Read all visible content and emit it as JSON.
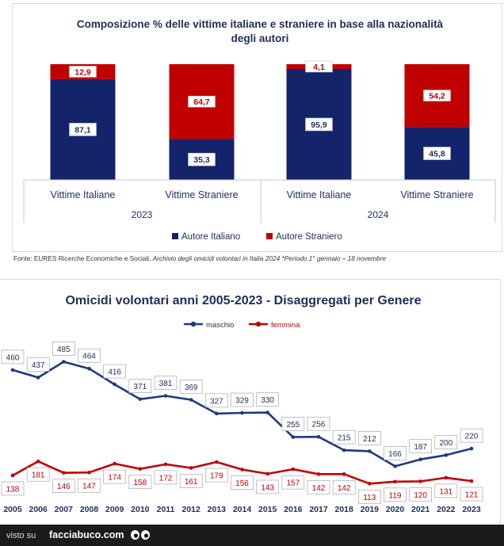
{
  "chart_data": [
    {
      "type": "bar",
      "stacked": true,
      "percent": true,
      "title": "Composizione % delle vittime italiane e straniere in base alla nazionalità degli autori",
      "categories": [
        "Vittime Italiane",
        "Vittime Straniere",
        "Vittime Italiane",
        "Vittime Straniere"
      ],
      "groups": [
        "2023",
        "2023",
        "2024",
        "2024"
      ],
      "group_labels": [
        "2023",
        "2024"
      ],
      "series": [
        {
          "name": "Autore Italiano",
          "color": "#14246b",
          "values": [
            87.1,
            35.3,
            95.9,
            45.8
          ],
          "labels": [
            "87,1",
            "35,3",
            "95,9",
            "45,8"
          ]
        },
        {
          "name": "Autore Straniero",
          "color": "#c00000",
          "values": [
            12.9,
            64.7,
            4.1,
            54.2
          ],
          "labels": [
            "12,9",
            "64,7",
            "4,1",
            "54,2"
          ]
        }
      ],
      "ylim": [
        0,
        100
      ],
      "legend": "bottom",
      "xlabel": "",
      "ylabel": ""
    },
    {
      "type": "line",
      "title": "Omicidi volontari anni 2005-2023 - Disaggregati per Genere",
      "x": [
        "2005",
        "2006",
        "2007",
        "2008",
        "2009",
        "2010",
        "2011",
        "2012",
        "2013",
        "2014",
        "2015",
        "2016",
        "2017",
        "2018",
        "2019",
        "2020",
        "2021",
        "2022",
        "2023"
      ],
      "series": [
        {
          "name": "maschio",
          "color": "#1f3a7a",
          "values": [
            460,
            437,
            485,
            464,
            416,
            371,
            381,
            369,
            327,
            329,
            330,
            255,
            256,
            215,
            212,
            166,
            187,
            200,
            220
          ]
        },
        {
          "name": "femmina",
          "color": "#c00000",
          "values": [
            138,
            181,
            146,
            147,
            174,
            158,
            172,
            161,
            179,
            156,
            143,
            157,
            142,
            142,
            113,
            119,
            120,
            131,
            121
          ]
        }
      ],
      "ylim": [
        0,
        520
      ],
      "legend": "top",
      "xlabel": "",
      "ylabel": ""
    }
  ],
  "source": {
    "prefix": "Fonte: EURES Ricerche Economiche e Sociali, ",
    "italic": "Archivio degli omicidi volontari in Italia 2024 *Periodo 1° gennaio – 18 novembre"
  },
  "footer": {
    "visto": "visto su",
    "site": "facciabuco.com"
  }
}
